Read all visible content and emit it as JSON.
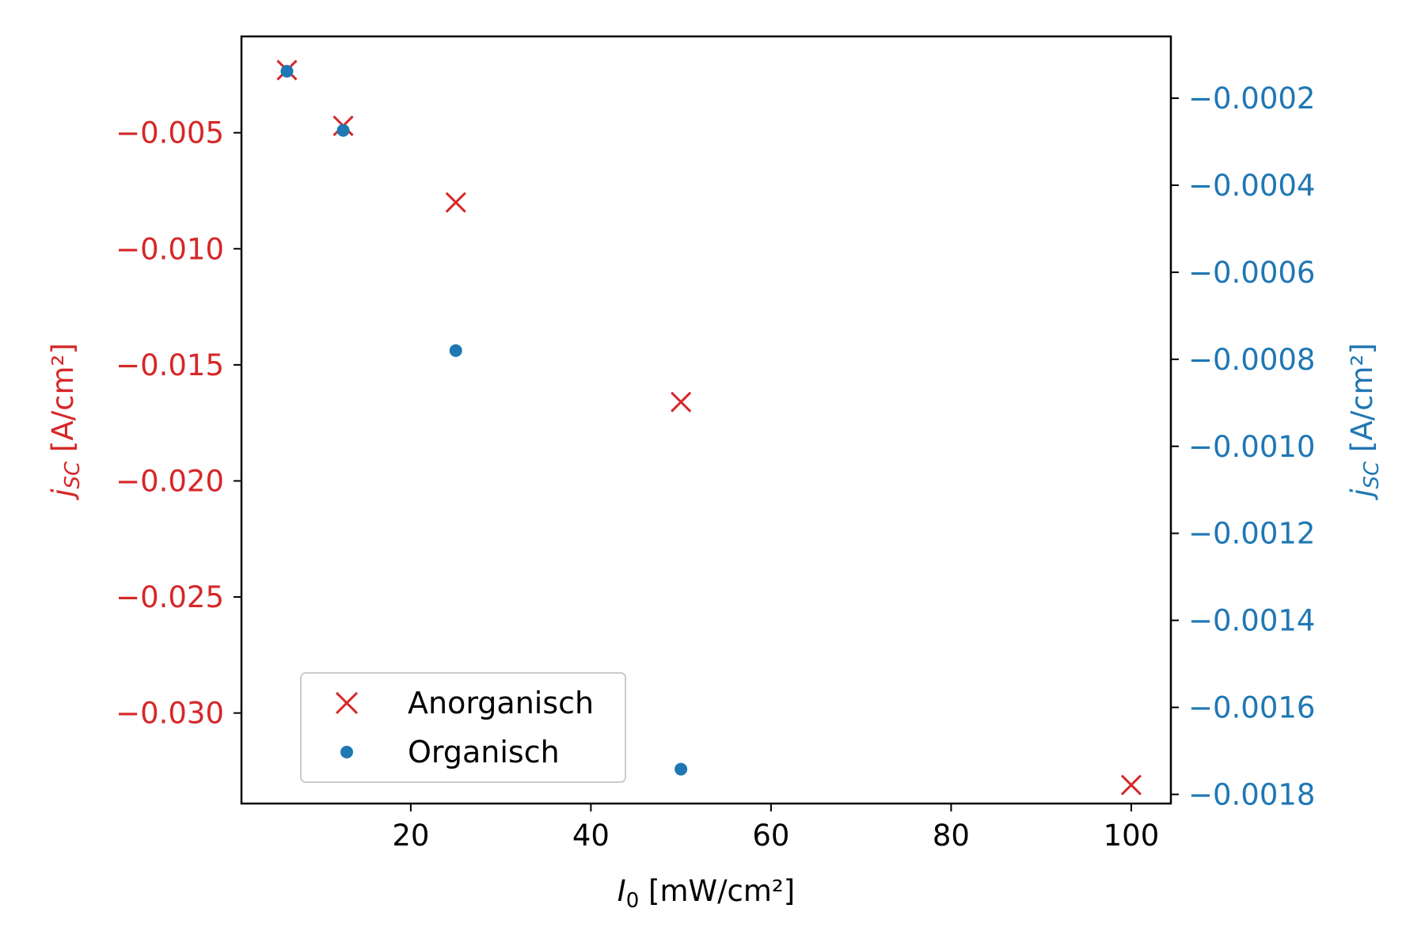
{
  "chart_data": {
    "type": "scatter",
    "colors": {
      "left": "#d62728",
      "right": "#1f77b4",
      "axis": "#000000"
    },
    "x_axis": {
      "label_var": "I",
      "label_sub": "0",
      "label_unit": " [mW/cm²]",
      "lim": [
        1.2,
        104.4
      ],
      "ticks": [
        20,
        40,
        60,
        80,
        100
      ],
      "tick_labels": [
        "20",
        "40",
        "60",
        "80",
        "100"
      ]
    },
    "y_left": {
      "label_var": "j",
      "label_sub": "SC",
      "label_unit": " [A/cm²]",
      "lim": [
        -0.0339,
        -0.00085
      ],
      "ticks": [
        -0.005,
        -0.01,
        -0.015,
        -0.02,
        -0.025,
        -0.03
      ],
      "tick_labels": [
        "−0.005",
        "−0.010",
        "−0.015",
        "−0.020",
        "−0.025",
        "−0.030"
      ]
    },
    "y_right": {
      "label_var": "j",
      "label_sub": "SC",
      "label_unit": " [A/cm²]",
      "lim": [
        -0.001821,
        -5.8e-05
      ],
      "ticks": [
        -0.0002,
        -0.0004,
        -0.0006,
        -0.0008,
        -0.001,
        -0.0012,
        -0.0014,
        -0.0016,
        -0.0018
      ],
      "tick_labels": [
        "−0.0002",
        "−0.0004",
        "−0.0006",
        "−0.0008",
        "−0.0010",
        "−0.0012",
        "−0.0014",
        "−0.0016",
        "−0.0018"
      ]
    },
    "series": [
      {
        "name": "Anorganisch",
        "axis": "left",
        "marker": "x",
        "color": "#d62728",
        "x": [
          6.25,
          12.5,
          25,
          50,
          100
        ],
        "y": [
          -0.0023,
          -0.0047,
          -0.008,
          -0.0166,
          -0.0331
        ]
      },
      {
        "name": "Organisch",
        "axis": "right",
        "marker": "dot",
        "color": "#1f77b4",
        "x": [
          6.25,
          12.5,
          25,
          50
        ],
        "y": [
          -0.000138,
          -0.000274,
          -0.00078,
          -0.001742
        ]
      }
    ],
    "legend": {
      "position": "lower-left"
    },
    "grid": false
  }
}
